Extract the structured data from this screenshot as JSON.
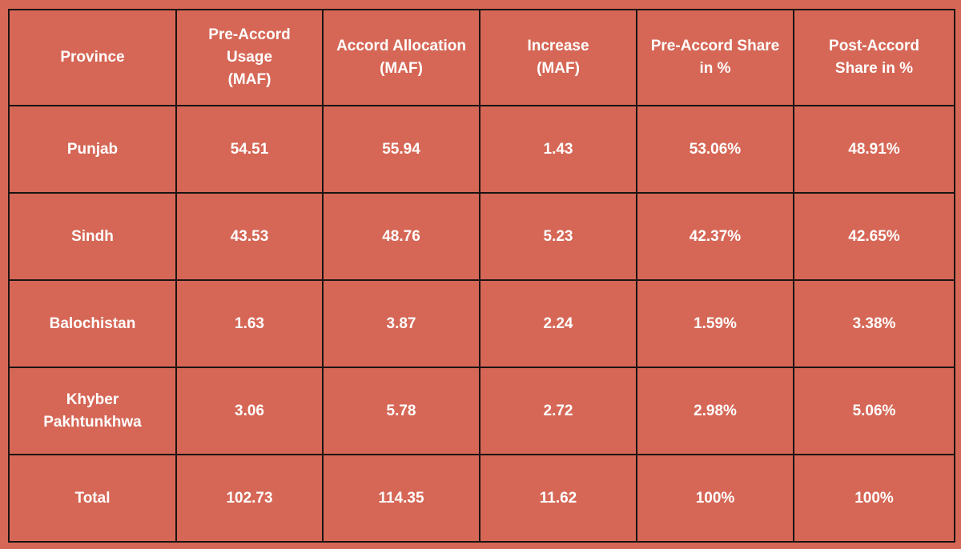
{
  "chart_data": {
    "type": "table",
    "columns": [
      "Province",
      "Pre-Accord\nUsage\n(MAF)",
      "Accord Allocation\n(MAF)",
      "Increase\n(MAF)",
      "Pre-Accord Share\nin %",
      "Post-Accord\nShare in %"
    ],
    "rows": [
      [
        "Punjab",
        "54.51",
        "55.94",
        "1.43",
        "53.06%",
        "48.91%"
      ],
      [
        "Sindh",
        "43.53",
        "48.76",
        "5.23",
        "42.37%",
        "42.65%"
      ],
      [
        "Balochistan",
        "1.63",
        "3.87",
        "2.24",
        "1.59%",
        "3.38%"
      ],
      [
        "Khyber\nPakhtunkhwa",
        "3.06",
        "5.78",
        "2.72",
        "2.98%",
        "5.06%"
      ],
      [
        "Total",
        "102.73",
        "114.35",
        "11.62",
        "100%",
        "100%"
      ]
    ]
  },
  "colors": {
    "background": "#d66756",
    "border": "#1a1414",
    "text": "#ffffff"
  }
}
